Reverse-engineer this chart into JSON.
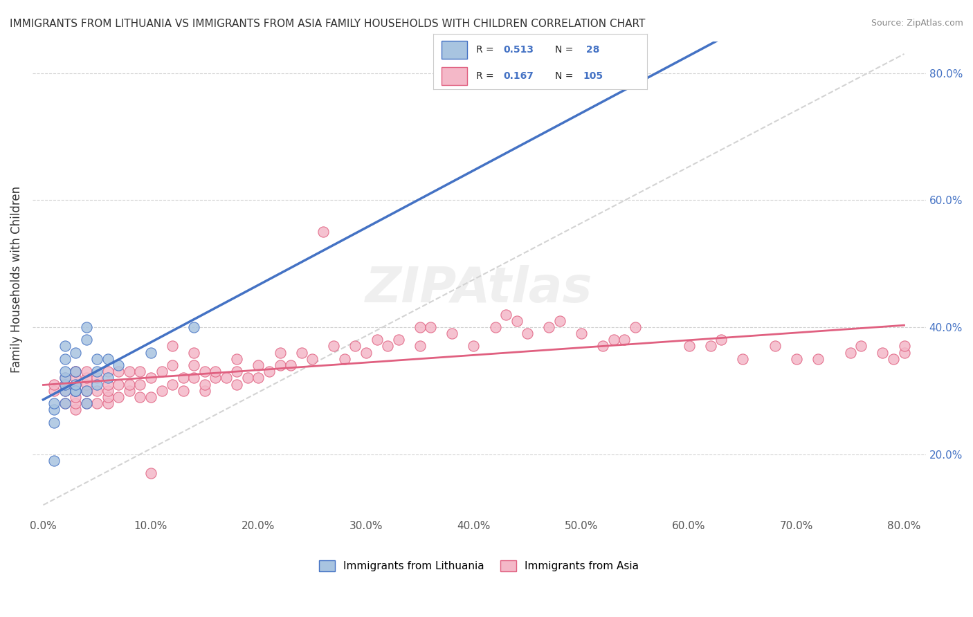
{
  "title": "IMMIGRANTS FROM LITHUANIA VS IMMIGRANTS FROM ASIA FAMILY HOUSEHOLDS WITH CHILDREN CORRELATION CHART",
  "source": "Source: ZipAtlas.com",
  "xlabel_bottom": "",
  "ylabel": "Family Households with Children",
  "x_label_bottom_left": "0.0%",
  "x_label_bottom_right": "80.0%",
  "y_label_right_top": "80.0%",
  "y_label_right_60": "60.0%",
  "y_label_right_40": "40.0%",
  "y_label_right_20": "20.0%",
  "legend_blue_R": "R = 0.513",
  "legend_blue_N": "N =  28",
  "legend_pink_R": "R = 0.167",
  "legend_pink_N": "N = 105",
  "legend_label_blue": "Immigrants from Lithuania",
  "legend_label_pink": "Immigrants from Asia",
  "blue_color": "#a8c4e0",
  "blue_line_color": "#4472c4",
  "pink_color": "#f4b8c8",
  "pink_line_color": "#e06080",
  "watermark": "ZIPAtlas",
  "xlim": [
    0.0,
    0.8
  ],
  "ylim": [
    0.1,
    0.85
  ],
  "blue_scatter_x": [
    0.01,
    0.01,
    0.01,
    0.01,
    0.02,
    0.02,
    0.02,
    0.02,
    0.02,
    0.02,
    0.02,
    0.03,
    0.03,
    0.03,
    0.03,
    0.03,
    0.04,
    0.04,
    0.04,
    0.04,
    0.05,
    0.05,
    0.05,
    0.06,
    0.06,
    0.07,
    0.1,
    0.14
  ],
  "blue_scatter_y": [
    0.19,
    0.25,
    0.27,
    0.28,
    0.28,
    0.3,
    0.31,
    0.32,
    0.33,
    0.35,
    0.37,
    0.3,
    0.3,
    0.31,
    0.33,
    0.36,
    0.28,
    0.3,
    0.38,
    0.4,
    0.31,
    0.33,
    0.35,
    0.32,
    0.35,
    0.34,
    0.36,
    0.4
  ],
  "pink_scatter_x": [
    0.01,
    0.01,
    0.02,
    0.02,
    0.02,
    0.02,
    0.03,
    0.03,
    0.03,
    0.03,
    0.03,
    0.03,
    0.03,
    0.03,
    0.04,
    0.04,
    0.04,
    0.04,
    0.04,
    0.04,
    0.05,
    0.05,
    0.05,
    0.06,
    0.06,
    0.06,
    0.06,
    0.06,
    0.07,
    0.07,
    0.07,
    0.08,
    0.08,
    0.08,
    0.09,
    0.09,
    0.09,
    0.1,
    0.1,
    0.1,
    0.11,
    0.11,
    0.12,
    0.12,
    0.12,
    0.13,
    0.13,
    0.14,
    0.14,
    0.14,
    0.15,
    0.15,
    0.15,
    0.16,
    0.16,
    0.17,
    0.18,
    0.18,
    0.18,
    0.19,
    0.2,
    0.2,
    0.21,
    0.22,
    0.22,
    0.23,
    0.24,
    0.25,
    0.26,
    0.27,
    0.28,
    0.29,
    0.3,
    0.31,
    0.32,
    0.33,
    0.35,
    0.35,
    0.36,
    0.38,
    0.4,
    0.42,
    0.43,
    0.44,
    0.45,
    0.47,
    0.48,
    0.5,
    0.52,
    0.53,
    0.54,
    0.55,
    0.6,
    0.62,
    0.63,
    0.65,
    0.68,
    0.7,
    0.72,
    0.75,
    0.76,
    0.78,
    0.79,
    0.8,
    0.8
  ],
  "pink_scatter_y": [
    0.3,
    0.31,
    0.28,
    0.3,
    0.31,
    0.32,
    0.27,
    0.28,
    0.29,
    0.3,
    0.31,
    0.32,
    0.33,
    0.33,
    0.28,
    0.3,
    0.3,
    0.31,
    0.32,
    0.33,
    0.28,
    0.3,
    0.32,
    0.28,
    0.29,
    0.3,
    0.31,
    0.33,
    0.29,
    0.31,
    0.33,
    0.3,
    0.31,
    0.33,
    0.29,
    0.31,
    0.33,
    0.17,
    0.29,
    0.32,
    0.3,
    0.33,
    0.31,
    0.34,
    0.37,
    0.3,
    0.32,
    0.32,
    0.34,
    0.36,
    0.3,
    0.31,
    0.33,
    0.32,
    0.33,
    0.32,
    0.31,
    0.33,
    0.35,
    0.32,
    0.32,
    0.34,
    0.33,
    0.34,
    0.36,
    0.34,
    0.36,
    0.35,
    0.55,
    0.37,
    0.35,
    0.37,
    0.36,
    0.38,
    0.37,
    0.38,
    0.37,
    0.4,
    0.4,
    0.39,
    0.37,
    0.4,
    0.42,
    0.41,
    0.39,
    0.4,
    0.41,
    0.39,
    0.37,
    0.38,
    0.38,
    0.4,
    0.37,
    0.37,
    0.38,
    0.35,
    0.37,
    0.35,
    0.35,
    0.36,
    0.37,
    0.36,
    0.35,
    0.36,
    0.37
  ]
}
